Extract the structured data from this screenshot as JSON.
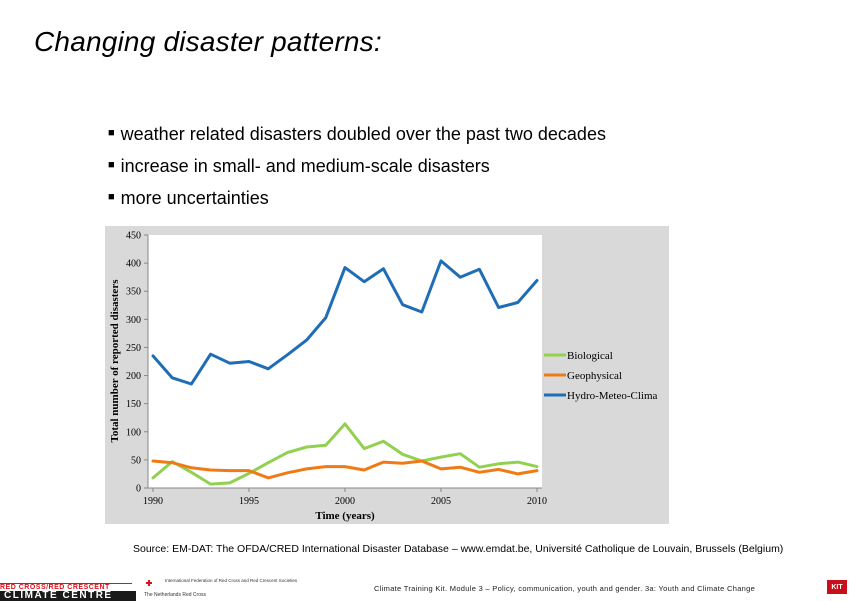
{
  "slide": {
    "title": "Changing disaster patterns:",
    "bullets": [
      "weather related disasters doubled over the past two decades",
      "increase in small- and medium-scale disasters",
      "more uncertainties"
    ],
    "bullet_marker": "■",
    "source": "Source: EM-DAT: The OFDA/CRED International Disaster Database – www.emdat.be, Université Catholique de Louvain, Brussels (Belgium)",
    "footer": {
      "centre_line1": "RED CROSS/RED CRESCENT",
      "centre_line2": "CLIMATE CENTRE",
      "ifrc_text": "International Federation of Red Cross and Red Crescent Societies",
      "nl_text": "The Netherlands Red Cross",
      "course_text": "Climate Training Kit. Module 3 – Policy, communication, youth and gender. 3a: Youth and Climate Change",
      "kit_logo": "KIT"
    }
  },
  "chart_data": {
    "type": "line",
    "title": "",
    "xlabel": "Time (years)",
    "ylabel": "Total number of reported disasters",
    "x": [
      1990,
      1991,
      1992,
      1993,
      1994,
      1995,
      1996,
      1997,
      1998,
      1999,
      2000,
      2001,
      2002,
      2003,
      2004,
      2005,
      2006,
      2007,
      2008,
      2009,
      2010
    ],
    "xticks": [
      "1990",
      "1995",
      "2000",
      "2005",
      "2010"
    ],
    "xlim": [
      1990,
      2010
    ],
    "ylim": [
      0,
      450
    ],
    "yticks": [
      "0",
      "50",
      "100",
      "150",
      "200",
      "250",
      "300",
      "350",
      "400",
      "450"
    ],
    "legend_position": "right",
    "series": [
      {
        "name": "Biological",
        "color": "#92d050",
        "values": [
          18,
          47,
          28,
          7,
          9,
          26,
          45,
          63,
          73,
          76,
          114,
          70,
          83,
          60,
          48,
          55,
          61,
          37,
          43,
          46,
          38
        ]
      },
      {
        "name": "Geophysical",
        "color": "#f07a16",
        "values": [
          48,
          45,
          36,
          32,
          31,
          31,
          18,
          27,
          34,
          38,
          38,
          32,
          46,
          44,
          48,
          34,
          37,
          28,
          33,
          25,
          31
        ]
      },
      {
        "name": "Hydro-Meteo-Clima",
        "color": "#1f6db5",
        "values": [
          235,
          196,
          185,
          238,
          222,
          225,
          212,
          237,
          263,
          303,
          392,
          367,
          390,
          326,
          313,
          404,
          375,
          389,
          321,
          330,
          369
        ]
      }
    ]
  }
}
